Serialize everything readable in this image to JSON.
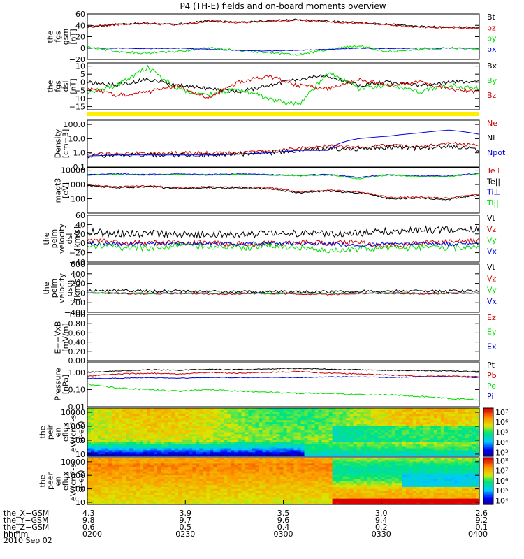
{
  "title": "P4 (TH-E) fields and on-board moments overview",
  "date_label": "2010 Sep 02",
  "colors": {
    "black": "#000000",
    "red": "#cc0000",
    "green": "#00dd00",
    "blue": "#0000dd",
    "yellow": "#ffee00"
  },
  "chart_data": [
    {
      "type": "line",
      "id": "fgs_gsm",
      "ylabel": [
        "the",
        "fgs",
        "gsm",
        "[nT]"
      ],
      "ylim": [
        -20,
        60
      ],
      "yticks": [
        {
          "v": 60,
          "l": "60"
        },
        {
          "v": 40,
          "l": "40"
        },
        {
          "v": 20,
          "l": "20"
        },
        {
          "v": 0,
          "l": "0"
        },
        {
          "v": -20,
          "l": "−20"
        }
      ],
      "series": [
        {
          "name": "Bt",
          "color": "black",
          "base": [
            38,
            42,
            44,
            42,
            48,
            46,
            48,
            50,
            47,
            45,
            42,
            38,
            37,
            36
          ],
          "noise": 1.5
        },
        {
          "name": "bz",
          "color": "red",
          "base": [
            37,
            41,
            43,
            41,
            47,
            45,
            47,
            49,
            46,
            44,
            41,
            37,
            36,
            35
          ],
          "noise": 1.5
        },
        {
          "name": "by",
          "color": "green",
          "base": [
            2,
            -6,
            -9,
            -6,
            0,
            -4,
            -8,
            -12,
            -2,
            4,
            -6,
            -3,
            0,
            -2
          ],
          "noise": 2
        },
        {
          "name": "bx",
          "color": "blue",
          "base": [
            0,
            0,
            -1,
            0,
            -2,
            -4,
            -5,
            -4,
            -2,
            0,
            -1,
            0,
            0,
            0
          ],
          "noise": 0.6
        }
      ]
    },
    {
      "type": "line",
      "id": "fgs_dsl",
      "ylabel": [
        "the",
        "fgs",
        "dsl",
        "[nT]"
      ],
      "ylim": [
        -17,
        12
      ],
      "yticks": [
        {
          "v": 10,
          "l": "10"
        },
        {
          "v": 5,
          "l": "5"
        },
        {
          "v": 0,
          "l": "0"
        },
        {
          "v": -5,
          "l": "−5"
        },
        {
          "v": -10,
          "l": "−10"
        },
        {
          "v": -15,
          "l": "−15"
        }
      ],
      "series": [
        {
          "name": "Bx",
          "color": "black",
          "base": [
            0,
            -2,
            2,
            -2,
            -4,
            -6,
            -2,
            2,
            4,
            -2,
            0,
            -2,
            0,
            1
          ],
          "noise": 1.2
        },
        {
          "name": "By",
          "color": "green",
          "base": [
            -6,
            -2,
            9,
            -4,
            -8,
            -4,
            -10,
            -14,
            6,
            -4,
            -2,
            -6,
            -2,
            -4
          ],
          "noise": 1.5
        },
        {
          "name": "Bz",
          "color": "red",
          "base": [
            -4,
            -8,
            -6,
            -2,
            -10,
            0,
            4,
            -2,
            -4,
            2,
            -2,
            0,
            -4,
            -6
          ],
          "noise": 1.2
        }
      ]
    },
    {
      "type": "line",
      "id": "density",
      "ylabel": [
        "Density",
        "[cm−3]"
      ],
      "scale": "log",
      "ylim": [
        0.1,
        200
      ],
      "yticks": [
        {
          "v": 100,
          "l": "100.0"
        },
        {
          "v": 10,
          "l": "10.0"
        },
        {
          "v": 1,
          "l": "1.0"
        },
        {
          "v": 0.1,
          "l": "0.1"
        }
      ],
      "series": [
        {
          "name": "Ne",
          "color": "red",
          "base": [
            0.8,
            0.9,
            0.9,
            1.0,
            1.0,
            1.0,
            1.2,
            2.0,
            3.0,
            2.5,
            3.5,
            2.5,
            5.0,
            3.0
          ],
          "noise": 0.12
        },
        {
          "name": "Ni",
          "color": "black",
          "base": [
            0.6,
            0.7,
            0.7,
            0.7,
            0.7,
            0.8,
            0.9,
            1.5,
            2.0,
            1.8,
            2.5,
            2.0,
            3.0,
            1.5
          ],
          "noise": 0.15
        },
        {
          "name": "Npot",
          "color": "blue",
          "base": [
            0.6,
            0.7,
            0.7,
            0.7,
            0.7,
            0.8,
            1.0,
            1.5,
            1.5,
            10,
            15,
            25,
            40,
            20
          ],
          "noise": 0
        }
      ]
    },
    {
      "type": "line",
      "id": "temperature",
      "ylabel": [
        "magt3",
        "[eV]"
      ],
      "scale": "log",
      "ylim": [
        10,
        15000
      ],
      "yticks": [
        {
          "v": 10000,
          "l": "10000"
        },
        {
          "v": 1000,
          "l": "1000"
        },
        {
          "v": 100,
          "l": "100"
        }
      ],
      "series": [
        {
          "name": "Te⊥",
          "color": "red",
          "base": [
            900,
            700,
            800,
            600,
            700,
            650,
            600,
            300,
            400,
            300,
            120,
            130,
            110,
            200
          ],
          "noise": 0.05
        },
        {
          "name": "Te||",
          "color": "black",
          "base": [
            800,
            600,
            700,
            500,
            600,
            550,
            500,
            250,
            350,
            250,
            100,
            110,
            90,
            180
          ],
          "noise": 0.05
        },
        {
          "name": "Ti⊥",
          "color": "blue",
          "base": [
            5000,
            5500,
            5000,
            5500,
            5000,
            5500,
            5000,
            4500,
            5000,
            3000,
            5000,
            4000,
            4000,
            6000
          ],
          "noise": 0.03
        },
        {
          "name": "Ti||",
          "color": "green",
          "base": [
            4500,
            5000,
            4500,
            5000,
            4500,
            5000,
            4500,
            4000,
            4500,
            2500,
            4500,
            3500,
            3500,
            5500
          ],
          "noise": 0.03
        }
      ]
    },
    {
      "type": "line",
      "id": "peim_dsl",
      "ylabel": [
        "the",
        "peim",
        "velocity",
        "dsl",
        "[km/s]"
      ],
      "ylim": [
        -40,
        60
      ],
      "yticks": [
        {
          "v": 60,
          "l": "60"
        },
        {
          "v": 40,
          "l": "40"
        },
        {
          "v": 20,
          "l": "20"
        },
        {
          "v": 0,
          "l": "0"
        },
        {
          "v": -20,
          "l": "−20"
        },
        {
          "v": -40,
          "l": "−40"
        }
      ],
      "series": [
        {
          "name": "Vt",
          "color": "black",
          "base": [
            25,
            20,
            22,
            18,
            20,
            18,
            20,
            22,
            20,
            22,
            25,
            28,
            30,
            32
          ],
          "noise": 8
        },
        {
          "name": "Vz",
          "color": "red",
          "base": [
            5,
            2,
            0,
            2,
            0,
            -2,
            0,
            2,
            0,
            2,
            -5,
            0,
            2,
            5
          ],
          "noise": 6
        },
        {
          "name": "Vy",
          "color": "green",
          "base": [
            -5,
            -8,
            -10,
            -5,
            -8,
            -10,
            -5,
            -8,
            -15,
            -12,
            -10,
            -8,
            -10,
            -5
          ],
          "noise": 7
        },
        {
          "name": "Vx",
          "color": "blue",
          "base": [
            0,
            -2,
            0,
            -1,
            0,
            -2,
            0,
            0,
            -1,
            -5,
            0,
            0,
            -2,
            0
          ],
          "noise": 4
        }
      ]
    },
    {
      "type": "line",
      "id": "peim_gsm",
      "ylabel": [
        "the",
        "peim",
        "velocity",
        "gsm",
        "[km/s]"
      ],
      "ylim": [
        -400,
        600
      ],
      "yticks": [
        {
          "v": 600,
          "l": "600"
        },
        {
          "v": 400,
          "l": "400"
        },
        {
          "v": 200,
          "l": "200"
        },
        {
          "v": 0,
          "l": "0"
        },
        {
          "v": -200,
          "l": "−200"
        },
        {
          "v": -400,
          "l": "−400"
        }
      ],
      "series": [
        {
          "name": "Vt",
          "color": "black",
          "base": [
            60,
            50,
            40,
            40,
            30,
            30,
            30,
            25,
            30,
            40,
            40,
            40,
            40,
            40
          ],
          "noise": 30
        },
        {
          "name": "Vz",
          "color": "red",
          "base": [
            0,
            -10,
            -20,
            -10,
            -20,
            -20,
            -10,
            -20,
            -30,
            -10,
            -10,
            -20,
            -10,
            0
          ],
          "noise": 12
        },
        {
          "name": "Vy",
          "color": "green",
          "base": [
            10,
            0,
            -10,
            0,
            -10,
            0,
            -10,
            0,
            -10,
            0,
            0,
            0,
            0,
            0
          ],
          "noise": 12
        },
        {
          "name": "Vx",
          "color": "blue",
          "base": [
            0,
            0,
            0,
            0,
            0,
            0,
            0,
            0,
            0,
            0,
            0,
            0,
            0,
            0
          ],
          "noise": 8
        }
      ]
    },
    {
      "type": "line",
      "id": "efield",
      "ylabel": [
        "E=−VxB",
        "[mV/m]"
      ],
      "ylim": [
        0,
        1
      ],
      "yticks": [
        {
          "v": 1,
          "l": "1.00"
        },
        {
          "v": 0.8,
          "l": "0.80"
        },
        {
          "v": 0.6,
          "l": "0.60"
        },
        {
          "v": 0.4,
          "l": "0.40"
        },
        {
          "v": 0.2,
          "l": "0.20"
        },
        {
          "v": 0,
          "l": "0.00"
        }
      ],
      "series": [
        {
          "name": "Ez",
          "color": "red",
          "base": [],
          "noise": 0
        },
        {
          "name": "Ey",
          "color": "green",
          "base": [],
          "noise": 0
        },
        {
          "name": "Ex",
          "color": "blue",
          "base": [],
          "noise": 0
        }
      ]
    },
    {
      "type": "line",
      "id": "pressure",
      "ylabel": [
        "Pressure",
        "[nPa]"
      ],
      "scale": "log",
      "ylim": [
        0.01,
        4
      ],
      "yticks": [
        {
          "v": 1,
          "l": "1.00"
        },
        {
          "v": 0.1,
          "l": "0.10"
        },
        {
          "v": 0.01,
          "l": "0.01"
        }
      ],
      "series": [
        {
          "name": "Pt",
          "color": "black",
          "base": [
            1.0,
            1.2,
            1.4,
            1.3,
            1.5,
            1.4,
            1.6,
            1.7,
            1.5,
            1.4,
            1.3,
            1.3,
            1.2,
            1.1
          ],
          "noise": 0.03
        },
        {
          "name": "Pb",
          "color": "red",
          "base": [
            0.6,
            0.8,
            0.9,
            0.8,
            1.0,
            0.9,
            1.0,
            1.1,
            0.9,
            0.8,
            0.7,
            0.6,
            0.6,
            0.55
          ],
          "noise": 0.03
        },
        {
          "name": "Pe",
          "color": "green",
          "base": [
            0.2,
            0.12,
            0.1,
            0.08,
            0.1,
            0.08,
            0.07,
            0.06,
            0.06,
            0.05,
            0.05,
            0.04,
            0.03,
            0.025
          ],
          "noise": 0.04
        },
        {
          "name": "Pi",
          "color": "blue",
          "base": [
            0.45,
            0.45,
            0.5,
            0.45,
            0.5,
            0.5,
            0.5,
            0.5,
            0.55,
            0.55,
            0.5,
            0.55,
            0.55,
            0.5
          ],
          "noise": 0.02
        }
      ]
    },
    {
      "type": "heatmap",
      "id": "peir",
      "ylabel": [
        "the",
        "peir",
        "en",
        "eflux",
        "eV/(cm²-s-",
        "sr-eV)"
      ],
      "scale": "log",
      "ylim": [
        7,
        20000
      ],
      "yticks": [
        {
          "v": 10000,
          "l": "10000"
        },
        {
          "v": 1000,
          "l": "1000"
        },
        {
          "v": 100,
          "l": "100"
        },
        {
          "v": 10,
          "l": "10"
        }
      ],
      "colorbar": {
        "min": 2.6,
        "max": 7.4,
        "labels": [
          {
            "v": 7,
            "l": "10⁷"
          },
          {
            "v": 6,
            "l": "10⁶"
          },
          {
            "v": 5,
            "l": "10⁵"
          },
          {
            "v": 4,
            "l": "10⁴"
          },
          {
            "v": 3,
            "l": "10³"
          }
        ]
      }
    },
    {
      "type": "heatmap",
      "id": "peer",
      "ylabel": [
        "the",
        "peer",
        "en",
        "eflux",
        "eV/(cm²-s-",
        "sr-eV)"
      ],
      "scale": "log",
      "ylim": [
        7,
        20000
      ],
      "yticks": [
        {
          "v": 10000,
          "l": "10000"
        },
        {
          "v": 1000,
          "l": "1000"
        },
        {
          "v": 100,
          "l": "100"
        },
        {
          "v": 10,
          "l": "10"
        }
      ],
      "colorbar": {
        "min": 3.6,
        "max": 8.3,
        "labels": [
          {
            "v": 8,
            "l": "10⁸"
          },
          {
            "v": 7,
            "l": "10⁷"
          },
          {
            "v": 6,
            "l": "10⁶"
          },
          {
            "v": 5,
            "l": "10⁵"
          },
          {
            "v": 4,
            "l": "10⁴"
          }
        ]
      }
    }
  ],
  "x_axis": {
    "rows": [
      {
        "name": "the_X−GSM",
        "values": [
          "4.3",
          "3.9",
          "3.5",
          "3.0",
          "2.6"
        ]
      },
      {
        "name": "the_Y−GSM",
        "values": [
          "9.8",
          "9.7",
          "9.6",
          "9.4",
          "9.2"
        ]
      },
      {
        "name": "the_Z−GSM",
        "values": [
          "0.6",
          "0.5",
          "0.4",
          "0.2",
          "0.1"
        ]
      },
      {
        "name": "hhmm",
        "values": [
          "0200",
          "0230",
          "0300",
          "0330",
          "0400"
        ]
      }
    ]
  }
}
